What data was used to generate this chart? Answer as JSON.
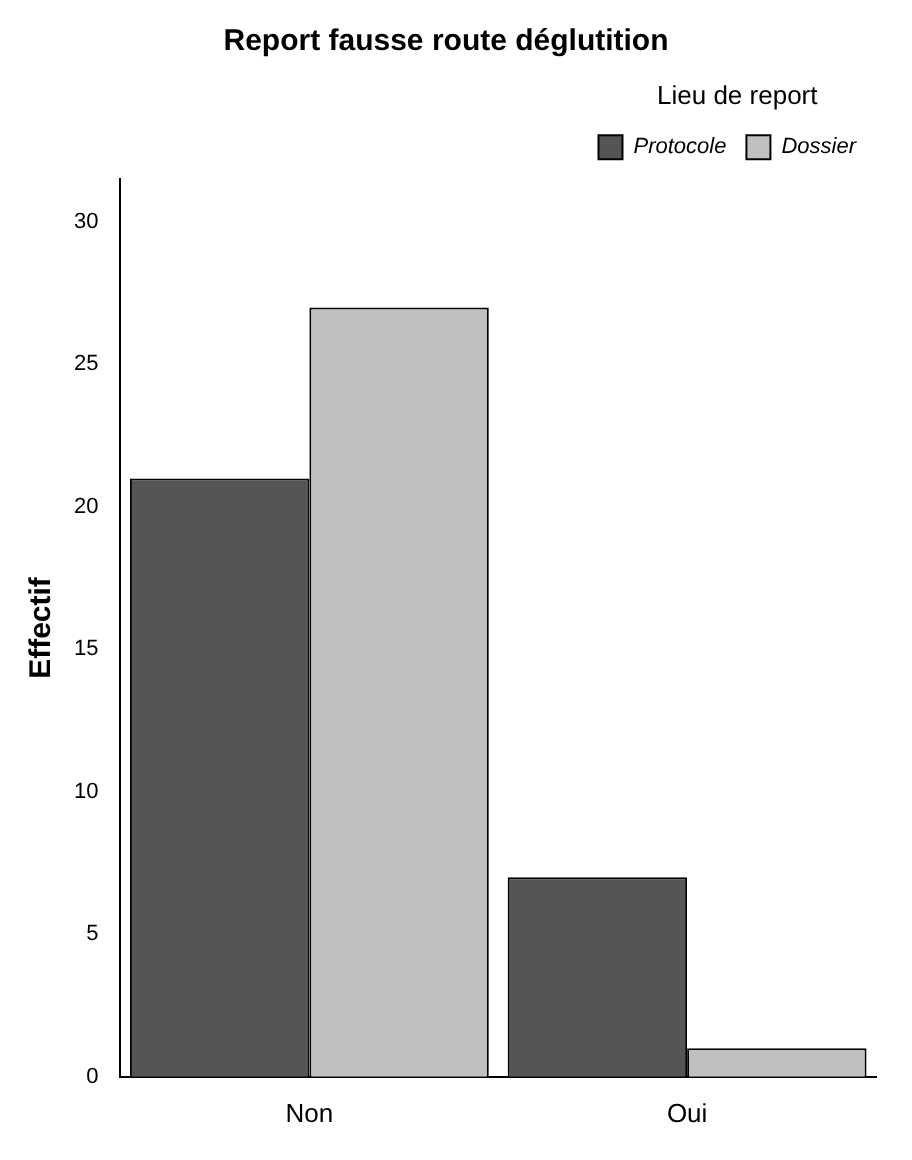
{
  "chart_data": {
    "type": "bar",
    "title": "Report fausse route déglutition",
    "ylabel": "Effectif",
    "legend_title": "Lieu de report",
    "categories": [
      "Non",
      "Oui"
    ],
    "series": [
      {
        "name": "Protocole",
        "color": "#555555",
        "values": [
          21,
          7
        ]
      },
      {
        "name": "Dossier",
        "color": "#c0c0c0",
        "values": [
          27,
          1
        ]
      }
    ],
    "ylim": [
      0,
      31.5
    ],
    "yticks": [
      0,
      5,
      10,
      15,
      20,
      25,
      30
    ],
    "grid": false,
    "legend": "top right"
  }
}
